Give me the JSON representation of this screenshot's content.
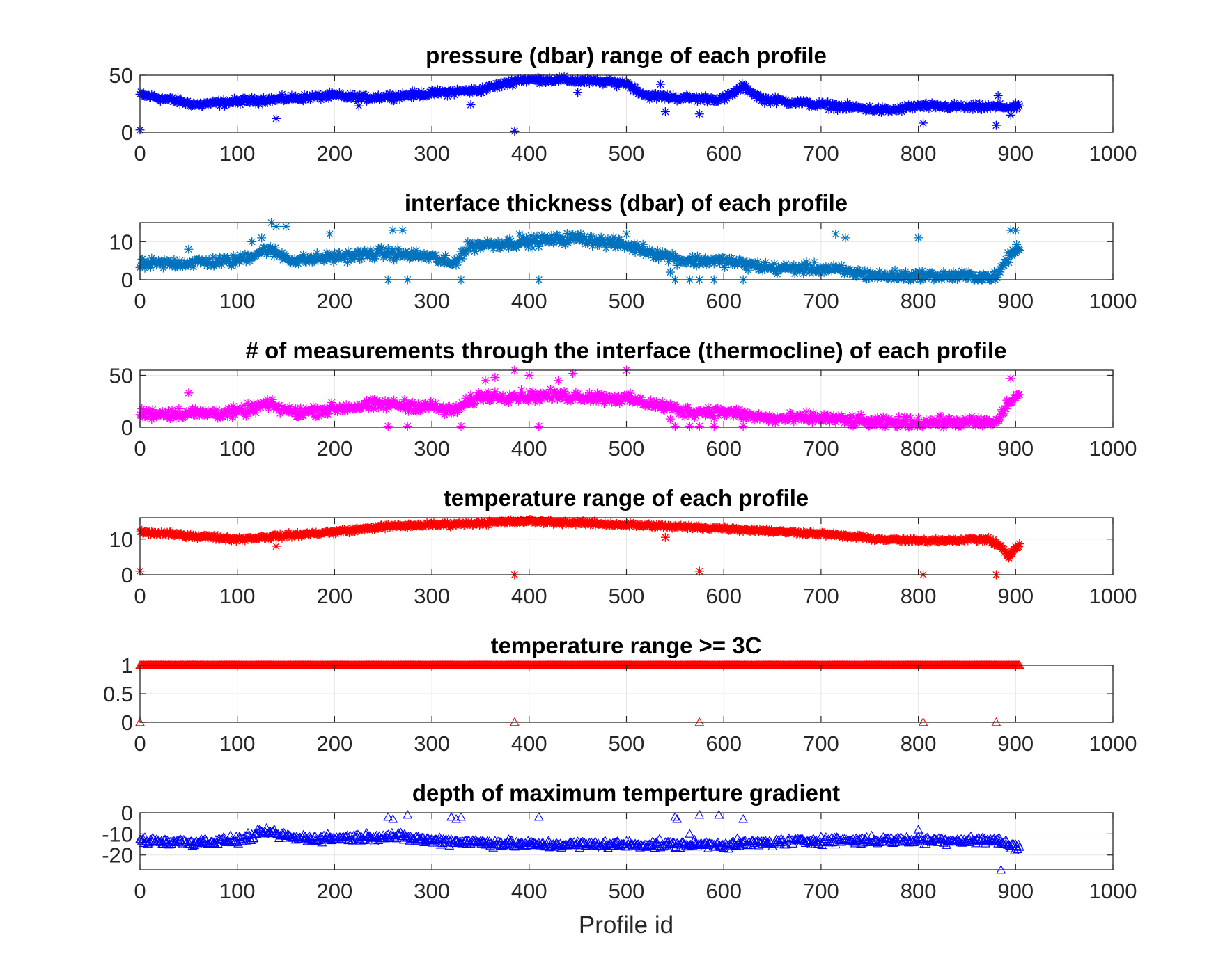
{
  "figure": {
    "xlabel": "Profile id"
  },
  "chart_data": [
    {
      "type": "scatter",
      "title": "pressure (dbar) range of each profile",
      "xlim": [
        0,
        1000
      ],
      "ylim": [
        0,
        50
      ],
      "xticks": [
        "0",
        "100",
        "200",
        "300",
        "400",
        "500",
        "600",
        "700",
        "800",
        "900",
        "1000"
      ],
      "yticks": [
        {
          "v": 0,
          "label": "0"
        },
        {
          "v": 50,
          "label": "50"
        }
      ],
      "grid": true,
      "marker": "asterisk",
      "color": "#0000ff",
      "n_points": 905,
      "trend": [
        [
          0,
          33
        ],
        [
          40,
          27
        ],
        [
          60,
          24
        ],
        [
          100,
          27
        ],
        [
          140,
          29
        ],
        [
          200,
          32
        ],
        [
          230,
          30
        ],
        [
          300,
          34
        ],
        [
          350,
          37
        ],
        [
          390,
          46
        ],
        [
          430,
          46
        ],
        [
          500,
          43
        ],
        [
          520,
          32
        ],
        [
          560,
          30
        ],
        [
          600,
          29
        ],
        [
          620,
          40
        ],
        [
          640,
          29
        ],
        [
          700,
          24
        ],
        [
          770,
          19
        ],
        [
          800,
          23
        ],
        [
          850,
          22
        ],
        [
          900,
          22
        ]
      ],
      "outliers": [
        [
          0,
          2
        ],
        [
          140,
          12
        ],
        [
          225,
          23
        ],
        [
          340,
          24
        ],
        [
          385,
          1
        ],
        [
          450,
          35
        ],
        [
          535,
          42
        ],
        [
          540,
          18
        ],
        [
          575,
          16
        ],
        [
          805,
          8
        ],
        [
          880,
          6
        ],
        [
          882,
          32
        ],
        [
          895,
          15
        ]
      ],
      "noise": 2.5
    },
    {
      "type": "scatter",
      "title": "interface thickness (dbar) of each profile",
      "xlim": [
        0,
        1000
      ],
      "ylim": [
        0,
        15
      ],
      "xticks": [
        "0",
        "100",
        "200",
        "300",
        "400",
        "500",
        "600",
        "700",
        "800",
        "900",
        "1000"
      ],
      "yticks": [
        {
          "v": 0,
          "label": "0"
        },
        {
          "v": 10,
          "label": "10"
        }
      ],
      "grid": true,
      "marker": "asterisk",
      "color": "#0072bd",
      "n_points": 905,
      "trend": [
        [
          0,
          4
        ],
        [
          100,
          5
        ],
        [
          130,
          8
        ],
        [
          160,
          5
        ],
        [
          200,
          6
        ],
        [
          250,
          7
        ],
        [
          300,
          6
        ],
        [
          320,
          4
        ],
        [
          340,
          9
        ],
        [
          400,
          10
        ],
        [
          450,
          11
        ],
        [
          500,
          9
        ],
        [
          530,
          7
        ],
        [
          560,
          5
        ],
        [
          600,
          5
        ],
        [
          650,
          3
        ],
        [
          700,
          3
        ],
        [
          760,
          1
        ],
        [
          800,
          1
        ],
        [
          850,
          1
        ],
        [
          880,
          0.5
        ],
        [
          890,
          5
        ],
        [
          900,
          8
        ]
      ],
      "outliers": [
        [
          50,
          8
        ],
        [
          115,
          10
        ],
        [
          125,
          11
        ],
        [
          135,
          15
        ],
        [
          140,
          14
        ],
        [
          150,
          14
        ],
        [
          195,
          12
        ],
        [
          255,
          0
        ],
        [
          260,
          13
        ],
        [
          270,
          13
        ],
        [
          275,
          0
        ],
        [
          330,
          0
        ],
        [
          390,
          12
        ],
        [
          410,
          0
        ],
        [
          500,
          12
        ],
        [
          545,
          2
        ],
        [
          550,
          0
        ],
        [
          565,
          0
        ],
        [
          575,
          0
        ],
        [
          590,
          0
        ],
        [
          620,
          0
        ],
        [
          715,
          12
        ],
        [
          725,
          11
        ],
        [
          800,
          11
        ],
        [
          895,
          13
        ],
        [
          900,
          13
        ]
      ],
      "noise": 1.2
    },
    {
      "type": "scatter",
      "title": "# of measurements through the interface (thermocline) of each profile",
      "xlim": [
        0,
        1000
      ],
      "ylim": [
        0,
        55
      ],
      "xticks": [
        "0",
        "100",
        "200",
        "300",
        "400",
        "500",
        "600",
        "700",
        "800",
        "900",
        "1000"
      ],
      "yticks": [
        {
          "v": 0,
          "label": "0"
        },
        {
          "v": 50,
          "label": "50"
        }
      ],
      "grid": true,
      "marker": "asterisk",
      "color": "#ff00ff",
      "n_points": 905,
      "trend": [
        [
          0,
          13
        ],
        [
          100,
          14
        ],
        [
          130,
          22
        ],
        [
          160,
          14
        ],
        [
          200,
          18
        ],
        [
          250,
          22
        ],
        [
          300,
          20
        ],
        [
          320,
          15
        ],
        [
          350,
          30
        ],
        [
          400,
          30
        ],
        [
          450,
          30
        ],
        [
          500,
          27
        ],
        [
          540,
          20
        ],
        [
          560,
          15
        ],
        [
          600,
          15
        ],
        [
          650,
          8
        ],
        [
          700,
          9
        ],
        [
          760,
          4
        ],
        [
          800,
          5
        ],
        [
          850,
          5
        ],
        [
          880,
          4
        ],
        [
          890,
          20
        ],
        [
          900,
          30
        ]
      ],
      "outliers": [
        [
          50,
          33
        ],
        [
          255,
          1
        ],
        [
          275,
          1
        ],
        [
          330,
          1
        ],
        [
          355,
          45
        ],
        [
          365,
          48
        ],
        [
          385,
          55
        ],
        [
          400,
          50
        ],
        [
          410,
          1
        ],
        [
          430,
          45
        ],
        [
          445,
          52
        ],
        [
          500,
          55
        ],
        [
          545,
          8
        ],
        [
          550,
          1
        ],
        [
          565,
          1
        ],
        [
          575,
          1
        ],
        [
          590,
          1
        ],
        [
          620,
          1
        ],
        [
          895,
          47
        ]
      ],
      "noise": 4.5
    },
    {
      "type": "scatter",
      "title": "temperature range of each profile",
      "xlim": [
        0,
        1000
      ],
      "ylim": [
        0,
        16
      ],
      "xticks": [
        "0",
        "100",
        "200",
        "300",
        "400",
        "500",
        "600",
        "700",
        "800",
        "900",
        "1000"
      ],
      "yticks": [
        {
          "v": 0,
          "label": "0"
        },
        {
          "v": 10,
          "label": "10"
        }
      ],
      "grid": true,
      "marker": "asterisk",
      "color": "#ff0000",
      "n_points": 905,
      "trend": [
        [
          0,
          12
        ],
        [
          50,
          11
        ],
        [
          100,
          10
        ],
        [
          150,
          11
        ],
        [
          200,
          12
        ],
        [
          250,
          13.5
        ],
        [
          300,
          14
        ],
        [
          400,
          15
        ],
        [
          500,
          14
        ],
        [
          600,
          13
        ],
        [
          700,
          11.5
        ],
        [
          760,
          10
        ],
        [
          800,
          9.5
        ],
        [
          870,
          10
        ],
        [
          885,
          8
        ],
        [
          893,
          5
        ],
        [
          905,
          9
        ]
      ],
      "outliers": [
        [
          0,
          1
        ],
        [
          140,
          8
        ],
        [
          385,
          0
        ],
        [
          540,
          10.5
        ],
        [
          575,
          1
        ],
        [
          805,
          0
        ],
        [
          880,
          0
        ]
      ],
      "noise": 0.5
    },
    {
      "type": "scatter",
      "title": "temperature range >= 3C",
      "xlim": [
        0,
        1000
      ],
      "ylim": [
        0,
        1
      ],
      "xticks": [
        "0",
        "100",
        "200",
        "300",
        "400",
        "500",
        "600",
        "700",
        "800",
        "900",
        "1000"
      ],
      "yticks": [
        {
          "v": 0,
          "label": "0"
        },
        {
          "v": 0.5,
          "label": "0.5"
        },
        {
          "v": 1,
          "label": "1"
        }
      ],
      "grid": true,
      "marker": "triangle",
      "color": "#ff0000",
      "n_points": 905,
      "trend": [
        [
          0,
          1
        ],
        [
          905,
          1
        ]
      ],
      "outliers": [
        [
          0,
          0
        ],
        [
          385,
          0
        ],
        [
          575,
          0
        ],
        [
          805,
          0
        ],
        [
          880,
          0
        ]
      ],
      "noise": 0
    },
    {
      "type": "scatter",
      "title": "depth of maximum temperture gradient",
      "xlim": [
        0,
        1000
      ],
      "ylim": [
        -27,
        0
      ],
      "xticks": [
        "0",
        "100",
        "200",
        "300",
        "400",
        "500",
        "600",
        "700",
        "800",
        "900",
        "1000"
      ],
      "yticks": [
        {
          "v": 0,
          "label": "0"
        },
        {
          "v": -10,
          "label": "-10"
        },
        {
          "v": -20,
          "label": "-20"
        }
      ],
      "grid": true,
      "marker": "triangle",
      "color": "#0000ff",
      "n_points": 905,
      "trend": [
        [
          0,
          -13
        ],
        [
          50,
          -14
        ],
        [
          100,
          -13
        ],
        [
          130,
          -9
        ],
        [
          160,
          -12
        ],
        [
          200,
          -12
        ],
        [
          260,
          -11
        ],
        [
          300,
          -13
        ],
        [
          400,
          -15
        ],
        [
          500,
          -15
        ],
        [
          600,
          -15
        ],
        [
          700,
          -13
        ],
        [
          800,
          -13
        ],
        [
          880,
          -13
        ],
        [
          900,
          -16
        ]
      ],
      "outliers": [
        [
          255,
          -2
        ],
        [
          260,
          -3
        ],
        [
          275,
          -1
        ],
        [
          320,
          -2
        ],
        [
          325,
          -3
        ],
        [
          330,
          -2
        ],
        [
          410,
          -2
        ],
        [
          550,
          -2
        ],
        [
          552,
          -3
        ],
        [
          565,
          -10
        ],
        [
          575,
          -1
        ],
        [
          595,
          -1
        ],
        [
          620,
          -3
        ],
        [
          800,
          -8
        ],
        [
          885,
          -27
        ]
      ],
      "noise": 1.6
    }
  ]
}
